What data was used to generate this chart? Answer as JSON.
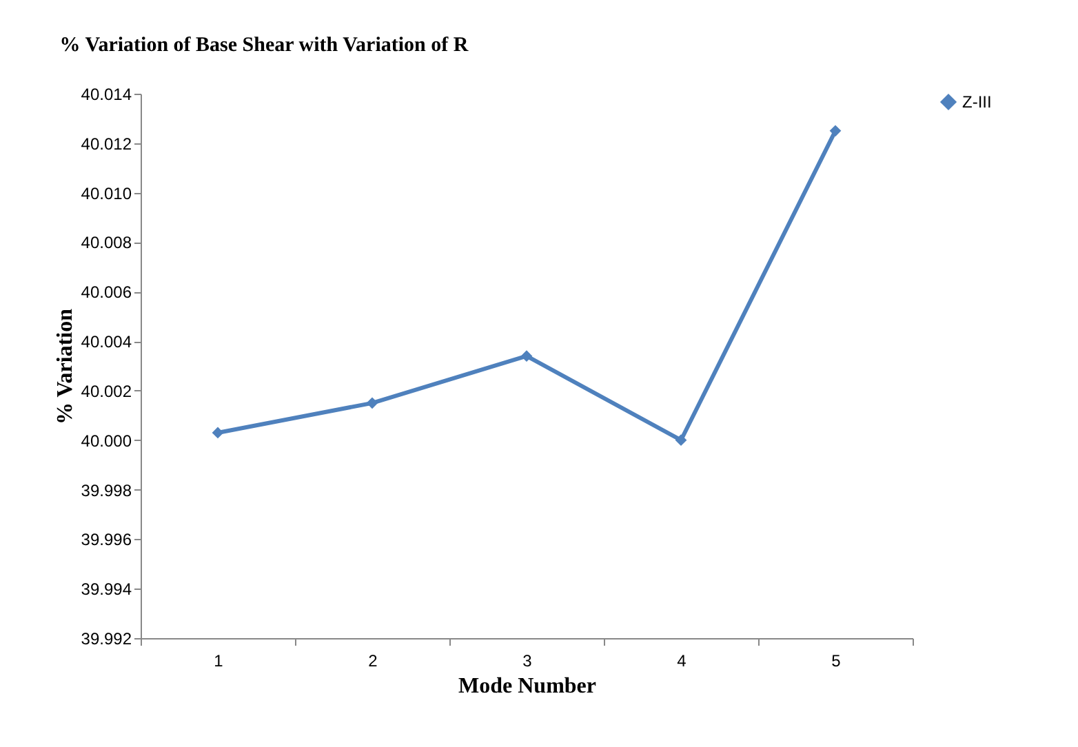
{
  "chart_data": {
    "type": "line",
    "title": "% Variation of Base Shear with Variation of R",
    "xlabel": "Mode Number",
    "ylabel": "% Variation",
    "categories": [
      "1",
      "2",
      "3",
      "4",
      "5"
    ],
    "series": [
      {
        "name": "Z-III",
        "color": "#4f81bd",
        "values": [
          40.0003,
          40.0015,
          40.0034,
          40.0,
          40.0125
        ]
      }
    ],
    "ylim": [
      39.992,
      40.014
    ],
    "yticks": [
      {
        "value": 39.992,
        "label": "39.992"
      },
      {
        "value": 39.994,
        "label": "39.994"
      },
      {
        "value": 39.996,
        "label": "39.996"
      },
      {
        "value": 39.998,
        "label": "39.998"
      },
      {
        "value": 40.0,
        "label": "40.000"
      },
      {
        "value": 40.002,
        "label": "40.002"
      },
      {
        "value": 40.004,
        "label": "40.004"
      },
      {
        "value": 40.006,
        "label": "40.006"
      },
      {
        "value": 40.008,
        "label": "40.008"
      },
      {
        "value": 40.01,
        "label": "40.010"
      },
      {
        "value": 40.012,
        "label": "40.012"
      },
      {
        "value": 40.014,
        "label": "40.014"
      }
    ],
    "grid": false,
    "legend": "right",
    "marker": "diamond",
    "line_style": "solid"
  }
}
